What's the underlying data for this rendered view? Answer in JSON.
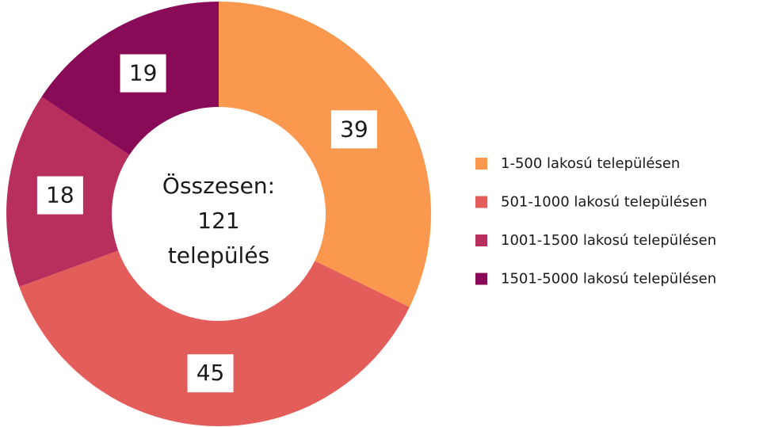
{
  "chart_data": {
    "type": "donut",
    "categories": [
      "1-500 lakosú településen",
      "501-1000 lakosú településen",
      "1001-1500 lakosú településen",
      "1501-5000 lakosú településen"
    ],
    "values": [
      39,
      45,
      18,
      19
    ],
    "colors": [
      "#fb984f",
      "#e35e5a",
      "#b82f5e",
      "#890b57"
    ],
    "center_text": [
      "Összesen:",
      "121",
      "település"
    ],
    "legend": "right"
  }
}
